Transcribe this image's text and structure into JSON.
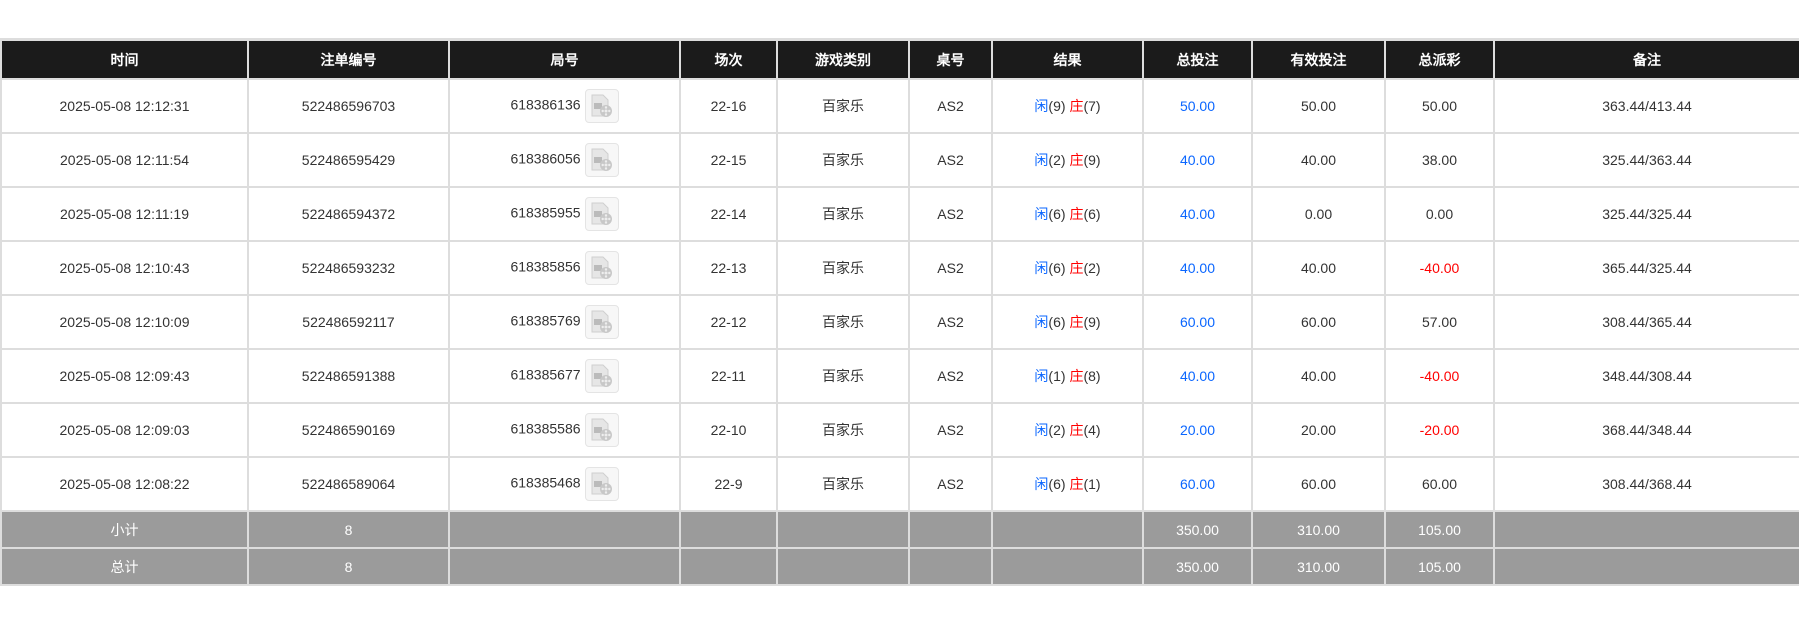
{
  "headers": [
    "时间",
    "注单编号",
    "局号",
    "场次",
    "游戏类别",
    "桌号",
    "结果",
    "总投注",
    "有效投注",
    "总派彩",
    "备注"
  ],
  "colors": {
    "player": "#0a66ff",
    "banker": "#ff0000",
    "negative": "#ff0000",
    "header_bg": "#1b1b1b",
    "summary_bg": "#9b9b9b"
  },
  "rows": [
    {
      "time": "2025-05-08 12:12:31",
      "bet_id": "522486596703",
      "round": "618386136",
      "session": "22-16",
      "game": "百家乐",
      "table": "AS2",
      "player": "闲",
      "player_pts": "(9)",
      "banker": "庄",
      "banker_pts": "(7)",
      "total": "50.00",
      "valid": "50.00",
      "payout": "50.00",
      "payout_negative": false,
      "note": "363.44/413.44"
    },
    {
      "time": "2025-05-08 12:11:54",
      "bet_id": "522486595429",
      "round": "618386056",
      "session": "22-15",
      "game": "百家乐",
      "table": "AS2",
      "player": "闲",
      "player_pts": "(2)",
      "banker": "庄",
      "banker_pts": "(9)",
      "total": "40.00",
      "valid": "40.00",
      "payout": "38.00",
      "payout_negative": false,
      "note": "325.44/363.44"
    },
    {
      "time": "2025-05-08 12:11:19",
      "bet_id": "522486594372",
      "round": "618385955",
      "session": "22-14",
      "game": "百家乐",
      "table": "AS2",
      "player": "闲",
      "player_pts": "(6)",
      "banker": "庄",
      "banker_pts": "(6)",
      "total": "40.00",
      "valid": "0.00",
      "payout": "0.00",
      "payout_negative": false,
      "note": "325.44/325.44"
    },
    {
      "time": "2025-05-08 12:10:43",
      "bet_id": "522486593232",
      "round": "618385856",
      "session": "22-13",
      "game": "百家乐",
      "table": "AS2",
      "player": "闲",
      "player_pts": "(6)",
      "banker": "庄",
      "banker_pts": "(2)",
      "total": "40.00",
      "valid": "40.00",
      "payout": "-40.00",
      "payout_negative": true,
      "note": "365.44/325.44"
    },
    {
      "time": "2025-05-08 12:10:09",
      "bet_id": "522486592117",
      "round": "618385769",
      "session": "22-12",
      "game": "百家乐",
      "table": "AS2",
      "player": "闲",
      "player_pts": "(6)",
      "banker": "庄",
      "banker_pts": "(9)",
      "total": "60.00",
      "valid": "60.00",
      "payout": "57.00",
      "payout_negative": false,
      "note": "308.44/365.44"
    },
    {
      "time": "2025-05-08 12:09:43",
      "bet_id": "522486591388",
      "round": "618385677",
      "session": "22-11",
      "game": "百家乐",
      "table": "AS2",
      "player": "闲",
      "player_pts": "(1)",
      "banker": "庄",
      "banker_pts": "(8)",
      "total": "40.00",
      "valid": "40.00",
      "payout": "-40.00",
      "payout_negative": true,
      "note": "348.44/308.44"
    },
    {
      "time": "2025-05-08 12:09:03",
      "bet_id": "522486590169",
      "round": "618385586",
      "session": "22-10",
      "game": "百家乐",
      "table": "AS2",
      "player": "闲",
      "player_pts": "(2)",
      "banker": "庄",
      "banker_pts": "(4)",
      "total": "20.00",
      "valid": "20.00",
      "payout": "-20.00",
      "payout_negative": true,
      "note": "368.44/348.44"
    },
    {
      "time": "2025-05-08 12:08:22",
      "bet_id": "522486589064",
      "round": "618385468",
      "session": "22-9",
      "game": "百家乐",
      "table": "AS2",
      "player": "闲",
      "player_pts": "(6)",
      "banker": "庄",
      "banker_pts": "(1)",
      "total": "60.00",
      "valid": "60.00",
      "payout": "60.00",
      "payout_negative": false,
      "note": "308.44/368.44"
    }
  ],
  "summary": [
    {
      "label": "小计",
      "count": "8",
      "total": "350.00",
      "valid": "310.00",
      "payout": "105.00"
    },
    {
      "label": "总计",
      "count": "8",
      "total": "350.00",
      "valid": "310.00",
      "payout": "105.00"
    }
  ],
  "icon": "video-replay-icon"
}
